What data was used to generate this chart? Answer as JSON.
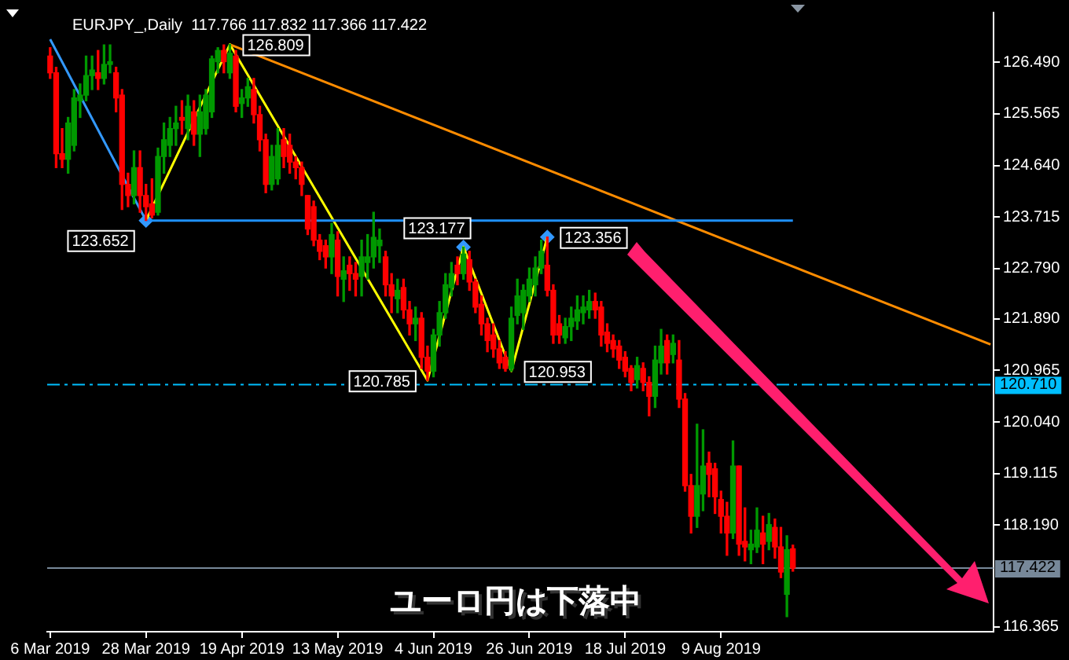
{
  "chart_data": {
    "type": "candlestick",
    "title": "EURJPY_,Daily  117.766 117.832 117.366 117.422",
    "categories": [
      "6 Mar 2019",
      null,
      null,
      null,
      null,
      null,
      null,
      null,
      null,
      null,
      null,
      null,
      null,
      null,
      null,
      null,
      "28 Mar 2019",
      null,
      null,
      null,
      null,
      null,
      null,
      null,
      null,
      null,
      null,
      null,
      null,
      null,
      null,
      null,
      "19 Apr 2019",
      null,
      null,
      null,
      null,
      null,
      null,
      null,
      null,
      null,
      null,
      null,
      null,
      null,
      null,
      null,
      "13 May 2019",
      null,
      null,
      null,
      null,
      null,
      null,
      null,
      null,
      null,
      null,
      null,
      null,
      null,
      null,
      null,
      "4 Jun 2019",
      null,
      null,
      null,
      null,
      null,
      null,
      null,
      null,
      null,
      null,
      null,
      null,
      null,
      null,
      null,
      "26 Jun 2019",
      null,
      null,
      null,
      null,
      null,
      null,
      null,
      null,
      null,
      null,
      null,
      null,
      null,
      null,
      null,
      "18 Jul 2019",
      null,
      null,
      null,
      null,
      null,
      null,
      null,
      null,
      null,
      null,
      null,
      null,
      null,
      null,
      null,
      "9 Aug 2019",
      null,
      null,
      null,
      null,
      null,
      null,
      null,
      null,
      null,
      null,
      null,
      null,
      null,
      null,
      null,
      null,
      null,
      null,
      null,
      null,
      null,
      null,
      null,
      null,
      null,
      null,
      null,
      null,
      null,
      null,
      null,
      null,
      null,
      null,
      null,
      null,
      null,
      null,
      null,
      null,
      null,
      null,
      null,
      null,
      null
    ],
    "ohlc": [
      [
        126.6,
        126.75,
        126.2,
        126.3
      ],
      [
        126.3,
        126.4,
        124.6,
        124.85
      ],
      [
        124.85,
        125.3,
        124.6,
        124.75
      ],
      [
        124.75,
        125.5,
        124.5,
        125.4
      ],
      [
        125.0,
        126.0,
        124.9,
        125.85
      ],
      [
        125.8,
        126.1,
        125.5,
        125.9
      ],
      [
        125.9,
        126.6,
        125.8,
        126.25
      ],
      [
        126.25,
        126.6,
        126.0,
        126.35
      ],
      [
        126.3,
        126.7,
        126.0,
        126.2
      ],
      [
        126.2,
        126.8,
        126.1,
        126.45
      ],
      [
        126.45,
        126.8,
        126.3,
        126.5
      ],
      [
        126.3,
        126.4,
        125.6,
        125.85
      ],
      [
        125.9,
        126.0,
        123.85,
        124.3
      ],
      [
        124.3,
        124.5,
        123.9,
        124.1
      ],
      [
        124.1,
        124.9,
        123.95,
        124.6
      ],
      [
        124.6,
        124.9,
        123.8,
        124.1
      ],
      [
        124.1,
        124.3,
        123.652,
        123.9
      ],
      [
        123.95,
        124.4,
        123.7,
        123.75
      ],
      [
        123.8,
        124.95,
        123.75,
        124.8
      ],
      [
        124.8,
        125.4,
        124.5,
        125.1
      ],
      [
        125.0,
        125.5,
        124.8,
        125.3
      ],
      [
        125.3,
        125.7,
        125.0,
        125.4
      ],
      [
        125.5,
        125.8,
        125.2,
        125.45
      ],
      [
        125.3,
        125.9,
        125.1,
        125.7
      ],
      [
        125.6,
        125.8,
        125.0,
        125.2
      ],
      [
        125.2,
        125.9,
        124.8,
        125.6
      ],
      [
        125.3,
        126.0,
        125.2,
        125.9
      ],
      [
        125.6,
        126.6,
        125.5,
        126.55
      ],
      [
        126.5,
        126.75,
        126.3,
        126.7
      ],
      [
        126.7,
        126.8,
        126.3,
        126.5
      ],
      [
        126.3,
        126.809,
        126.2,
        126.65
      ],
      [
        126.6,
        126.7,
        125.6,
        125.7
      ],
      [
        125.75,
        126.0,
        125.5,
        125.85
      ],
      [
        125.85,
        126.2,
        125.7,
        126.05
      ],
      [
        126.0,
        126.2,
        125.4,
        125.55
      ],
      [
        125.55,
        125.7,
        124.9,
        125.1
      ],
      [
        125.1,
        125.2,
        124.15,
        124.3
      ],
      [
        124.3,
        125.0,
        124.2,
        124.8
      ],
      [
        124.4,
        125.3,
        124.3,
        125.0
      ],
      [
        125.1,
        125.3,
        124.6,
        124.8
      ],
      [
        125.0,
        125.2,
        124.5,
        124.7
      ],
      [
        124.7,
        124.8,
        124.4,
        124.6
      ],
      [
        124.6,
        124.7,
        124.1,
        124.3
      ],
      [
        124.1,
        124.1,
        123.4,
        123.5
      ],
      [
        123.9,
        124.0,
        123.2,
        123.3
      ],
      [
        123.3,
        123.4,
        122.95,
        123.1
      ],
      [
        123.2,
        123.3,
        122.8,
        123.0
      ],
      [
        123.0,
        123.6,
        122.7,
        123.4
      ],
      [
        123.3,
        123.45,
        122.3,
        122.65
      ],
      [
        122.6,
        123.0,
        122.2,
        122.75
      ],
      [
        122.85,
        123.0,
        122.4,
        122.7
      ],
      [
        122.7,
        122.9,
        122.3,
        122.6
      ],
      [
        122.65,
        123.3,
        122.3,
        123.0
      ],
      [
        122.9,
        123.4,
        122.6,
        123.0
      ],
      [
        123.0,
        123.8,
        122.8,
        123.35
      ],
      [
        123.2,
        123.5,
        122.9,
        123.3
      ],
      [
        123.0,
        123.1,
        122.3,
        122.5
      ],
      [
        122.5,
        122.7,
        122.0,
        122.3
      ],
      [
        122.25,
        122.6,
        122.0,
        122.4
      ],
      [
        122.45,
        122.6,
        121.9,
        122.05
      ],
      [
        122.05,
        122.2,
        121.6,
        121.8
      ],
      [
        121.8,
        122.1,
        121.5,
        121.9
      ],
      [
        121.9,
        122.0,
        121.0,
        121.2
      ],
      [
        121.2,
        121.4,
        120.785,
        120.95
      ],
      [
        120.95,
        121.7,
        120.85,
        121.6
      ],
      [
        121.6,
        122.2,
        121.4,
        122.0
      ],
      [
        122.0,
        122.7,
        121.9,
        122.5
      ],
      [
        122.45,
        122.9,
        122.3,
        122.7
      ],
      [
        122.85,
        123.0,
        122.5,
        122.7
      ],
      [
        122.7,
        123.177,
        122.6,
        123.05
      ],
      [
        122.95,
        123.1,
        122.4,
        122.55
      ],
      [
        122.55,
        122.6,
        122.0,
        122.1
      ],
      [
        122.15,
        122.3,
        121.6,
        121.8
      ],
      [
        121.8,
        121.9,
        121.3,
        121.5
      ],
      [
        121.6,
        121.8,
        121.2,
        121.35
      ],
      [
        121.35,
        121.5,
        121.0,
        121.1
      ],
      [
        121.2,
        121.3,
        120.95,
        121.0
      ],
      [
        121.0,
        122.1,
        120.953,
        121.9
      ],
      [
        121.95,
        122.6,
        121.8,
        122.3
      ],
      [
        122.0,
        122.5,
        121.7,
        122.4
      ],
      [
        122.3,
        122.8,
        122.2,
        122.6
      ],
      [
        122.5,
        123.0,
        122.3,
        122.8
      ],
      [
        122.8,
        123.3,
        122.7,
        123.1
      ],
      [
        122.85,
        123.356,
        122.3,
        122.4
      ],
      [
        122.4,
        122.5,
        121.45,
        121.6
      ],
      [
        121.8,
        121.95,
        121.45,
        121.6
      ],
      [
        121.55,
        121.9,
        121.45,
        121.75
      ],
      [
        121.75,
        122.1,
        121.5,
        121.9
      ],
      [
        121.85,
        122.3,
        121.7,
        122.05
      ],
      [
        122.0,
        122.3,
        121.8,
        122.1
      ],
      [
        122.05,
        122.4,
        121.9,
        122.2
      ],
      [
        122.2,
        122.35,
        121.9,
        122.05
      ],
      [
        122.1,
        122.2,
        121.4,
        121.6
      ],
      [
        121.65,
        121.8,
        121.3,
        121.45
      ],
      [
        121.5,
        121.6,
        121.2,
        121.35
      ],
      [
        121.4,
        121.5,
        121.0,
        121.15
      ],
      [
        121.2,
        121.3,
        120.85,
        120.95
      ],
      [
        121.0,
        121.05,
        120.6,
        120.75
      ],
      [
        120.8,
        121.2,
        120.65,
        121.05
      ],
      [
        121.0,
        121.1,
        120.6,
        120.75
      ],
      [
        120.75,
        120.85,
        120.15,
        120.5
      ],
      [
        120.5,
        121.4,
        120.3,
        121.15
      ],
      [
        121.1,
        121.7,
        120.9,
        121.4
      ],
      [
        121.5,
        121.6,
        120.9,
        121.1
      ],
      [
        121.25,
        121.6,
        121.1,
        121.45
      ],
      [
        121.15,
        121.5,
        120.3,
        120.45
      ],
      [
        120.45,
        120.55,
        118.8,
        118.9
      ],
      [
        118.9,
        119.1,
        118.05,
        118.35
      ],
      [
        118.35,
        120.0,
        118.15,
        118.9
      ],
      [
        118.75,
        119.9,
        118.45,
        119.25
      ],
      [
        119.3,
        119.5,
        118.7,
        119.1
      ],
      [
        119.2,
        119.3,
        118.4,
        118.7
      ],
      [
        118.65,
        118.8,
        118.05,
        118.35
      ],
      [
        118.35,
        118.6,
        117.65,
        118.05
      ],
      [
        118.05,
        119.7,
        117.95,
        119.25
      ],
      [
        119.25,
        119.25,
        117.65,
        117.85
      ],
      [
        117.9,
        118.5,
        117.55,
        117.8
      ],
      [
        117.75,
        118.1,
        117.5,
        117.85
      ],
      [
        117.8,
        118.5,
        117.7,
        118.1
      ],
      [
        118.05,
        118.35,
        117.5,
        117.85
      ],
      [
        117.9,
        118.4,
        117.75,
        118.2
      ],
      [
        118.15,
        118.3,
        117.6,
        117.8
      ],
      [
        117.8,
        118.15,
        117.25,
        117.35
      ],
      [
        116.95,
        118.0,
        116.55,
        117.75
      ],
      [
        117.766,
        117.832,
        117.366,
        117.422
      ],
      null,
      null,
      null,
      null,
      null,
      null,
      null,
      null,
      null,
      null,
      null,
      null,
      null,
      null,
      null,
      null,
      null,
      null,
      null,
      null,
      null,
      null,
      null,
      null,
      null,
      null,
      null,
      null,
      null,
      null,
      null,
      null,
      null
    ],
    "colors": [
      "#ff0000",
      "#ff0000",
      "#ff0000",
      "#009900",
      "#009900",
      "#009900",
      "#009900",
      "#009900",
      "#ff0000",
      "#009900",
      "#009900",
      "#ff0000",
      "#ff0000",
      "#ff0000",
      "#009900",
      "#ff0000",
      "#ff0000",
      "#ff0000",
      "#009900",
      "#009900",
      "#009900",
      "#009900",
      "#ff0000",
      "#009900",
      "#ff0000",
      "#009900",
      "#009900",
      "#009900",
      "#009900",
      "#ff0000",
      "#009900",
      "#ff0000",
      "#009900",
      "#009900",
      "#ff0000",
      "#ff0000",
      "#ff0000",
      "#009900",
      "#009900",
      "#ff0000",
      "#ff0000",
      "#ff0000",
      "#ff0000",
      "#ff0000",
      "#ff0000",
      "#ff0000",
      "#ff0000",
      "#009900",
      "#ff0000",
      "#009900",
      "#ff0000",
      "#ff0000",
      "#009900",
      "#009900",
      "#009900",
      "#009900",
      "#ff0000",
      "#ff0000",
      "#009900",
      "#ff0000",
      "#ff0000",
      "#009900",
      "#ff0000",
      "#ff0000",
      "#009900",
      "#009900",
      "#009900",
      "#009900",
      "#ff0000",
      "#009900",
      "#ff0000",
      "#ff0000",
      "#ff0000",
      "#ff0000",
      "#ff0000",
      "#ff0000",
      "#ff0000",
      "#009900",
      "#009900",
      "#009900",
      "#009900",
      "#009900",
      "#009900",
      "#ff0000",
      "#ff0000",
      "#ff0000",
      "#009900",
      "#009900",
      "#009900",
      "#009900",
      "#009900",
      "#ff0000",
      "#ff0000",
      "#ff0000",
      "#ff0000",
      "#ff0000",
      "#ff0000",
      "#ff0000",
      "#009900",
      "#ff0000",
      "#ff0000",
      "#009900",
      "#009900",
      "#ff0000",
      "#009900",
      "#ff0000",
      "#ff0000",
      "#ff0000",
      "#009900",
      "#009900",
      "#ff0000",
      "#ff0000",
      "#ff0000",
      "#ff0000",
      "#009900",
      "#ff0000",
      "#ff0000",
      "#009900",
      "#009900",
      "#ff0000",
      "#009900",
      "#ff0000",
      "#ff0000",
      "#009900",
      "#ff0000",
      null,
      null,
      null,
      null,
      null,
      null,
      null,
      null,
      null,
      null,
      null,
      null,
      null,
      null,
      null,
      null,
      null,
      null,
      null,
      null,
      null,
      null,
      null,
      null,
      null,
      null,
      null,
      null,
      null,
      null,
      null,
      null,
      null
    ],
    "series": [
      {
        "type": "line",
        "color": "#3399ff",
        "values": [
          126.9,
          null,
          null,
          null,
          null,
          null,
          null,
          null,
          null,
          null,
          null,
          null,
          null,
          null,
          null,
          null,
          123.652,
          null,
          null,
          null,
          null,
          null,
          null,
          null,
          null,
          null,
          null,
          null,
          null,
          null,
          null,
          null,
          null,
          null,
          null,
          null,
          null,
          null,
          null,
          null,
          null,
          null,
          null,
          null,
          null,
          null,
          null,
          null,
          null,
          null,
          null,
          null,
          null,
          null,
          null,
          null,
          null,
          null,
          null,
          null,
          null,
          null,
          null,
          null,
          null,
          null,
          null,
          null,
          null,
          null,
          null,
          null,
          null,
          null,
          null,
          null,
          null,
          null,
          null,
          null,
          null,
          null,
          null,
          null,
          null,
          null,
          null,
          null,
          null,
          null,
          null,
          null,
          null,
          null,
          null,
          null,
          null,
          null,
          null,
          null,
          null,
          null,
          null,
          null,
          null,
          null,
          null,
          null,
          null,
          null,
          null,
          null,
          null,
          null,
          null,
          null,
          null,
          null,
          null,
          null,
          null,
          null,
          null,
          null,
          null,
          null,
          null,
          null,
          null,
          null,
          null,
          null,
          null,
          null,
          null,
          null,
          null,
          null,
          null,
          null,
          null,
          null,
          null,
          null,
          null,
          null,
          null,
          null,
          null,
          null,
          null,
          null,
          null,
          null,
          null,
          null,
          null,
          null
        ]
      },
      {
        "type": "line",
        "color": "#1e90ff",
        "values": [
          null,
          null,
          null,
          null,
          null,
          null,
          null,
          null,
          null,
          null,
          null,
          null,
          null,
          null,
          null,
          null,
          123.652,
          null,
          null,
          null,
          null,
          null,
          null,
          null,
          null,
          null,
          null,
          null,
          null,
          null,
          null,
          null,
          null,
          null,
          null,
          null,
          null,
          null,
          null,
          null,
          null,
          null,
          null,
          null,
          null,
          null,
          null,
          null,
          null,
          null,
          null,
          null,
          null,
          null,
          null,
          null,
          null,
          null,
          null,
          null,
          null,
          null,
          null,
          null,
          null,
          null,
          null,
          null,
          null,
          null,
          null,
          null,
          null,
          null,
          null,
          null,
          null,
          null,
          null,
          null,
          null,
          null,
          null,
          null,
          null,
          null,
          null,
          null,
          null,
          null,
          null,
          null,
          null,
          null,
          null,
          null,
          null,
          null,
          null,
          null,
          null,
          null,
          null,
          null,
          null,
          null,
          null,
          null,
          null,
          null,
          null,
          null,
          null,
          null,
          null,
          null,
          null,
          null,
          null,
          null,
          null,
          null,
          null,
          null,
          123.652,
          null,
          null,
          null,
          null,
          null,
          null,
          null,
          null,
          null,
          null,
          null,
          null,
          null,
          null,
          null,
          null,
          null,
          null,
          null,
          null,
          null,
          null,
          null,
          null,
          null,
          null,
          null,
          null,
          null,
          null,
          null,
          null,
          null
        ]
      },
      {
        "type": "line",
        "color": "#ff8c00",
        "values": [
          null,
          null,
          null,
          null,
          null,
          null,
          null,
          null,
          null,
          null,
          null,
          null,
          null,
          null,
          null,
          null,
          null,
          null,
          null,
          null,
          null,
          null,
          null,
          null,
          null,
          null,
          null,
          null,
          null,
          null,
          126.809,
          null,
          null,
          null,
          null,
          null,
          null,
          null,
          null,
          null,
          null,
          null,
          null,
          null,
          null,
          null,
          null,
          null,
          null,
          null,
          null,
          null,
          null,
          null,
          null,
          null,
          null,
          null,
          null,
          null,
          null,
          null,
          null,
          null,
          null,
          null,
          null,
          null,
          null,
          null,
          null,
          null,
          null,
          null,
          null,
          null,
          null,
          null,
          null,
          null,
          null,
          null,
          null,
          null,
          null,
          null,
          null,
          null,
          null,
          null,
          null,
          null,
          null,
          null,
          null,
          null,
          null,
          null,
          null,
          null,
          null,
          null,
          null,
          null,
          null,
          null,
          null,
          null,
          null,
          null,
          null,
          null,
          null,
          null,
          null,
          null,
          null,
          null,
          null,
          null,
          null,
          null,
          null,
          null,
          null,
          null,
          null,
          null,
          null,
          null,
          null,
          null,
          null,
          null,
          null,
          null,
          null,
          null,
          null,
          null,
          null,
          null,
          null,
          null,
          null,
          null,
          null,
          null,
          null,
          null,
          null,
          null,
          null,
          null,
          null,
          null,
          null,
          121.43
        ]
      },
      {
        "type": "line",
        "color": "#ffff00",
        "values": [
          null,
          null,
          null,
          null,
          null,
          null,
          null,
          null,
          null,
          null,
          null,
          null,
          null,
          null,
          null,
          null,
          123.652,
          null,
          null,
          null,
          null,
          null,
          null,
          null,
          null,
          null,
          null,
          null,
          null,
          null,
          126.809,
          null,
          null,
          null,
          null,
          null,
          null,
          null,
          null,
          null,
          null,
          null,
          null,
          null,
          null,
          null,
          null,
          null,
          null,
          null,
          null,
          null,
          null,
          null,
          null,
          null,
          null,
          null,
          null,
          null,
          null,
          null,
          null,
          120.785,
          null,
          null,
          null,
          null,
          null,
          123.177,
          null,
          null,
          null,
          null,
          null,
          null,
          null,
          120.953,
          null,
          null,
          null,
          null,
          null,
          123.356,
          null,
          null,
          null,
          null,
          null,
          null,
          null,
          null,
          null,
          null,
          null,
          null,
          null,
          null,
          null,
          null,
          null,
          null,
          null,
          null,
          null,
          null,
          null,
          null,
          null,
          null,
          null,
          null,
          null,
          null,
          null,
          null,
          null,
          null,
          null,
          null,
          null,
          null,
          null,
          null,
          null,
          null,
          null,
          null,
          null,
          null,
          null,
          null,
          null,
          null,
          null,
          null,
          null,
          null,
          null,
          null,
          null,
          null,
          null,
          null,
          null,
          null,
          null,
          null,
          null,
          null,
          null,
          null,
          null,
          null,
          null,
          null,
          null,
          null
        ],
        "value_labels": [
          null,
          null,
          null,
          null,
          null,
          null,
          null,
          null,
          null,
          null,
          null,
          null,
          null,
          null,
          null,
          null,
          "123.652",
          null,
          null,
          null,
          null,
          null,
          null,
          null,
          null,
          null,
          null,
          null,
          null,
          null,
          "126.809",
          null,
          null,
          null,
          null,
          null,
          null,
          null,
          null,
          null,
          null,
          null,
          null,
          null,
          null,
          null,
          null,
          null,
          null,
          null,
          null,
          null,
          null,
          null,
          null,
          null,
          null,
          null,
          null,
          null,
          null,
          null,
          null,
          "120.785",
          null,
          null,
          null,
          null,
          null,
          "123.177",
          null,
          null,
          null,
          null,
          null,
          null,
          null,
          "120.953",
          null,
          null,
          null,
          null,
          null,
          "123.356",
          null,
          null,
          null,
          null,
          null,
          null,
          null,
          null,
          null,
          null,
          null,
          null,
          null,
          null,
          null,
          null,
          null,
          null,
          null,
          null,
          null,
          null,
          null,
          null,
          null,
          null,
          null,
          null,
          null,
          null,
          null,
          null,
          null,
          null,
          null,
          null,
          null,
          null,
          null,
          null,
          null,
          null,
          null,
          null,
          null,
          null,
          null,
          null,
          null,
          null,
          null,
          null,
          null,
          null,
          null,
          null,
          null,
          null,
          null,
          null,
          null,
          null,
          null,
          null,
          null,
          null,
          null,
          null,
          null,
          null,
          null,
          null,
          null,
          null
        ]
      },
      {
        "type": "scatter",
        "color": "#3399ff",
        "marker": "diamond",
        "values": [
          null,
          null,
          null,
          null,
          null,
          null,
          null,
          null,
          null,
          null,
          null,
          null,
          null,
          null,
          null,
          null,
          123.652,
          null,
          null,
          null,
          null,
          null,
          null,
          null,
          null,
          null,
          null,
          null,
          null,
          null,
          null,
          null,
          null,
          null,
          null,
          null,
          null,
          null,
          null,
          null,
          null,
          null,
          null,
          null,
          null,
          null,
          null,
          null,
          null,
          null,
          null,
          null,
          null,
          null,
          null,
          null,
          null,
          null,
          null,
          null,
          null,
          null,
          null,
          null,
          null,
          null,
          null,
          null,
          null,
          123.177,
          null,
          null,
          null,
          null,
          null,
          null,
          null,
          null,
          null,
          null,
          null,
          null,
          null,
          123.356,
          null,
          null,
          null,
          null,
          null,
          null,
          null,
          null,
          null,
          null,
          null,
          null,
          null,
          null,
          null,
          null,
          null,
          null,
          null,
          null,
          null,
          null,
          null,
          null,
          null,
          null,
          null,
          null,
          null,
          null,
          null,
          null,
          null,
          null,
          null,
          null,
          null,
          null,
          null,
          null,
          null,
          null,
          null,
          null,
          null,
          null,
          null,
          null,
          null,
          null,
          null,
          null,
          null,
          null,
          null,
          null,
          null,
          null,
          null,
          null,
          null,
          null,
          null,
          null,
          null,
          null,
          null,
          null,
          null,
          null,
          null,
          null,
          null,
          null
        ]
      }
    ],
    "ref_lines": [
      {
        "axis": "y",
        "value": 120.71,
        "label": "120.710",
        "color": "#00bfff",
        "line_style": "dashed"
      },
      {
        "axis": "y",
        "value": 117.422,
        "label": "117.422",
        "color": "#778899"
      }
    ],
    "annotations": [
      "ユーロ円は下落中"
    ],
    "ylim": [
      116.28,
      127.38
    ],
    "yticks": [
      {
        "value": 116.365,
        "label": "116.365"
      },
      {
        "value": 118.19,
        "label": "118.190"
      },
      {
        "value": 119.115,
        "label": "119.115"
      },
      {
        "value": 120.04,
        "label": "120.040"
      },
      {
        "value": 120.965,
        "label": "120.965"
      },
      {
        "value": 121.89,
        "label": "121.890"
      },
      {
        "value": 122.79,
        "label": "122.790"
      },
      {
        "value": 123.715,
        "label": "123.715"
      },
      {
        "value": 124.64,
        "label": "124.640"
      },
      {
        "value": 125.565,
        "label": "125.565"
      },
      {
        "value": 126.49,
        "label": "126.490"
      }
    ],
    "grid": false,
    "legend": false
  }
}
